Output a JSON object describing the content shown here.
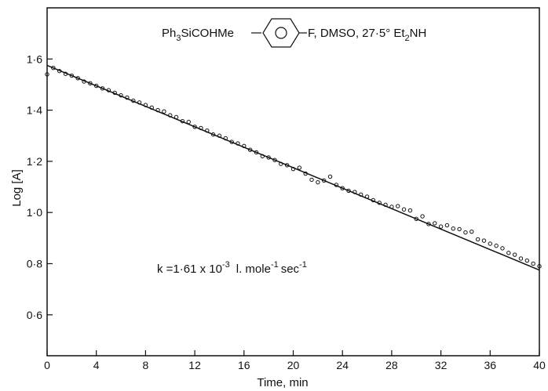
{
  "chart_data": {
    "type": "scatter",
    "xlabel": "Time, min",
    "ylabel": "Log [A]",
    "xlim": [
      0,
      40
    ],
    "ylim": [
      0.44,
      1.8
    ],
    "x_ticks": [
      0,
      4,
      8,
      12,
      16,
      20,
      24,
      28,
      32,
      36,
      40
    ],
    "x_tick_labels": [
      "0",
      "4",
      "8",
      "12",
      "16",
      "20",
      "24",
      "28",
      "32",
      "36",
      "40"
    ],
    "y_ticks": [
      0.6,
      0.8,
      1.0,
      1.2,
      1.4,
      1.6
    ],
    "y_tick_labels": [
      "0·6",
      "0·8",
      "1·0",
      "1·2",
      "1·4",
      "1·6"
    ],
    "grid": false,
    "legend": "none",
    "title": {
      "prefix": "Ph",
      "sub1": "3",
      "mid": "SiCOHMe",
      "ring": "benzene-ring-with-circle",
      "suffix": "F, DMSO, 27·5° Et",
      "sub2": "2",
      "end": "NH"
    },
    "annotation": {
      "k": "k =1·61 x 10",
      "exp1": "-3",
      "units1": "l. mole",
      "exp2": "-1",
      "units2": "sec",
      "exp3": "-1"
    },
    "fit_line": {
      "x": [
        0,
        40
      ],
      "y": [
        1.575,
        0.775
      ]
    },
    "points": {
      "x": [
        0,
        0.5,
        1,
        1.5,
        2,
        2.5,
        3,
        3.5,
        4,
        4.5,
        5,
        5.5,
        6,
        6.5,
        7,
        7.5,
        8,
        8.5,
        9,
        9.5,
        10,
        10.5,
        11,
        11.5,
        12,
        12.5,
        13,
        13.5,
        14,
        14.5,
        15,
        15.5,
        16,
        16.5,
        17,
        17.5,
        18,
        18.5,
        19,
        19.5,
        20,
        20.5,
        21,
        21.5,
        22,
        22.5,
        23,
        23.5,
        24,
        24.5,
        25,
        25.5,
        26,
        26.5,
        27,
        27.5,
        28,
        28.5,
        29,
        29.5,
        30,
        30.5,
        31,
        31.5,
        32,
        32.5,
        33,
        33.5,
        34,
        34.5,
        35,
        35.5,
        36,
        36.5,
        37,
        37.5,
        38,
        38.5,
        39,
        39.5,
        40
      ],
      "y": [
        1.54,
        1.565,
        1.553,
        1.542,
        1.535,
        1.525,
        1.512,
        1.505,
        1.495,
        1.485,
        1.478,
        1.468,
        1.458,
        1.449,
        1.437,
        1.43,
        1.42,
        1.41,
        1.4,
        1.395,
        1.38,
        1.373,
        1.357,
        1.354,
        1.335,
        1.33,
        1.32,
        1.305,
        1.3,
        1.29,
        1.276,
        1.27,
        1.26,
        1.245,
        1.235,
        1.22,
        1.215,
        1.205,
        1.19,
        1.185,
        1.17,
        1.175,
        1.152,
        1.128,
        1.118,
        1.125,
        1.14,
        1.108,
        1.095,
        1.085,
        1.08,
        1.07,
        1.062,
        1.048,
        1.038,
        1.03,
        1.022,
        1.025,
        1.012,
        1.008,
        0.975,
        0.985,
        0.955,
        0.958,
        0.945,
        0.95,
        0.937,
        0.935,
        0.922,
        0.925,
        0.895,
        0.89,
        0.878,
        0.87,
        0.86,
        0.842,
        0.835,
        0.82,
        0.812,
        0.8,
        0.79
      ]
    }
  }
}
